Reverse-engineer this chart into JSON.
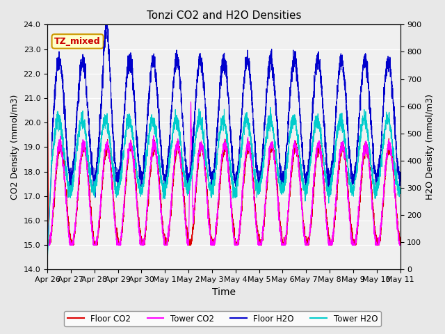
{
  "title": "Tonzi CO2 and H2O Densities",
  "xlabel": "Time",
  "ylabel_left": "CO2 Density (mmol/m3)",
  "ylabel_right": "H2O Density (mmol/m3)",
  "ylim_left": [
    14.0,
    24.0
  ],
  "ylim_right": [
    0,
    900
  ],
  "annotation_text": "TZ_mixed",
  "annotation_bg": "#ffffcc",
  "annotation_fg": "#cc0000",
  "annotation_border": "#cc9900",
  "colors": {
    "floor_co2": "#dd0000",
    "tower_co2": "#ff00ff",
    "floor_h2o": "#0000cc",
    "tower_h2o": "#00cccc"
  },
  "legend_labels": [
    "Floor CO2",
    "Tower CO2",
    "Floor H2O",
    "Tower H2O"
  ],
  "bg_color": "#e8e8e8",
  "plot_bg": "#f0f0f0",
  "n_points": 3840,
  "yticks_left": [
    14.0,
    15.0,
    16.0,
    17.0,
    18.0,
    19.0,
    20.0,
    21.0,
    22.0,
    23.0,
    24.0
  ],
  "yticks_right": [
    0,
    100,
    200,
    300,
    400,
    500,
    600,
    700,
    800,
    900
  ],
  "xtick_positions": [
    0,
    1,
    2,
    3,
    4,
    5,
    6,
    7,
    8,
    9,
    10,
    11,
    12,
    13,
    14,
    15
  ],
  "xtick_labels": [
    "Apr 26",
    "Apr 27",
    "Apr 28",
    "Apr 29",
    "Apr 30",
    "May 1",
    "May 2",
    "May 3",
    "May 4",
    "May 5",
    "May 6",
    "May 7",
    "May 8",
    "May 9",
    "May 10",
    "May 11"
  ]
}
